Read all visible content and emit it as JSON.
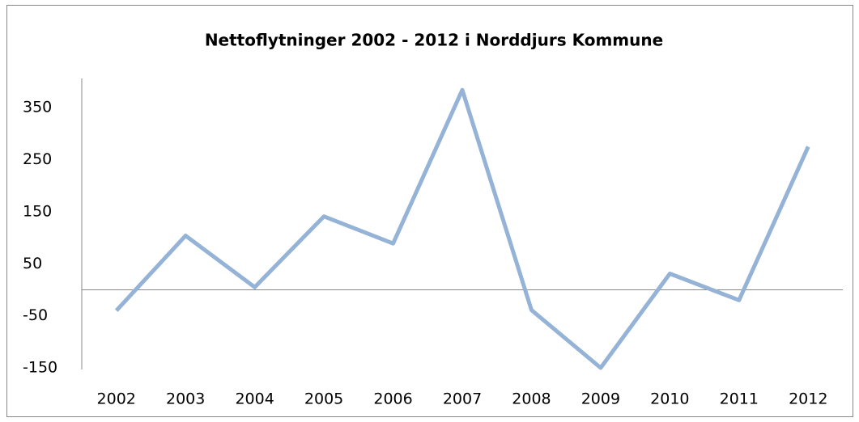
{
  "chart_data": {
    "type": "line",
    "title": "Nettoflytninger 2002 - 2012 i Norddjurs Kommune",
    "categories": [
      "2002",
      "2003",
      "2004",
      "2005",
      "2006",
      "2007",
      "2008",
      "2009",
      "2010",
      "2011",
      "2012"
    ],
    "series": [
      {
        "name": "Nettoflytninger",
        "color": "#95b3d7",
        "values": [
          -40,
          104,
          5,
          141,
          89,
          384,
          -39,
          -150,
          31,
          -20,
          275
        ]
      }
    ],
    "ylim": [
      -150,
      400
    ],
    "yticks": [
      -150,
      -50,
      50,
      150,
      250,
      350
    ],
    "grid": false
  }
}
